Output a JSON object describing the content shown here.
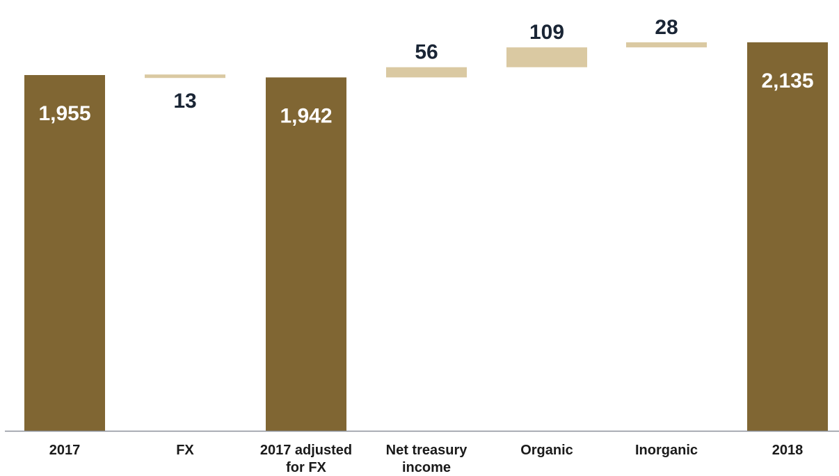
{
  "chart_data": {
    "type": "bar",
    "subtype": "waterfall",
    "categories": [
      [
        "2017"
      ],
      [
        "FX"
      ],
      [
        "2017 adjusted",
        "for FX"
      ],
      [
        "Net treasury",
        "income"
      ],
      [
        "Organic"
      ],
      [
        "Inorganic"
      ],
      [
        "2018"
      ]
    ],
    "bars": [
      {
        "kind": "total",
        "value": 1955,
        "label": "1,955"
      },
      {
        "kind": "decrease",
        "value": 13,
        "label": "13"
      },
      {
        "kind": "total",
        "value": 1942,
        "label": "1,942"
      },
      {
        "kind": "increase",
        "value": 56,
        "label": "56"
      },
      {
        "kind": "increase",
        "value": 109,
        "label": "109"
      },
      {
        "kind": "increase",
        "value": 28,
        "label": "28"
      },
      {
        "kind": "total",
        "value": 2135,
        "label": "2,135"
      }
    ],
    "title": "",
    "xlabel": "",
    "ylabel": "",
    "ylim": [
      0,
      2170
    ],
    "grid": false,
    "legend": false,
    "colors": {
      "total": "#806633",
      "change": "#dac9a2",
      "label_on_total": "#ffffff",
      "label_on_change": "#1a2535",
      "axis": "#8a8f99"
    }
  }
}
